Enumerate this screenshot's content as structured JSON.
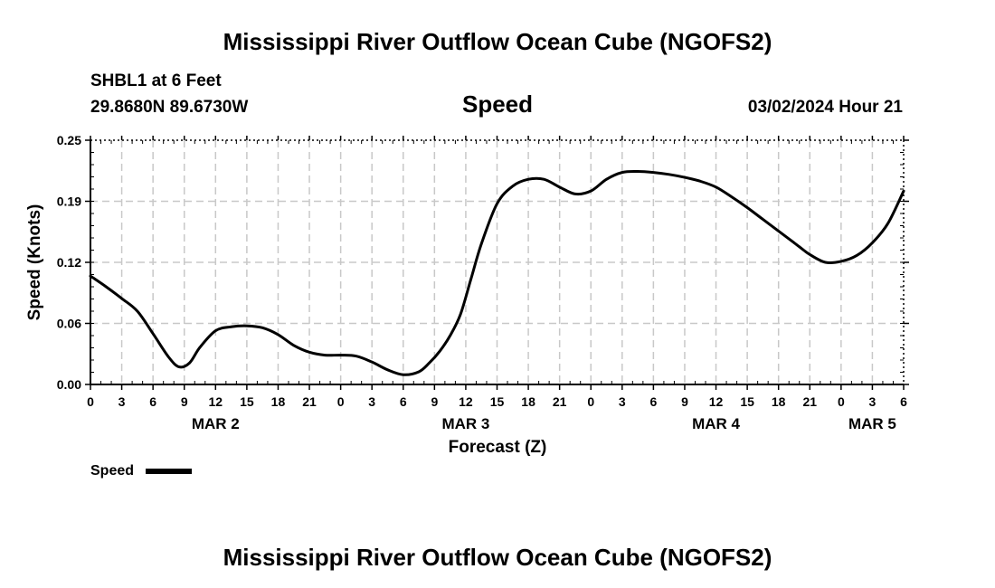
{
  "header": {
    "title": "Mississippi River Outflow Ocean Cube (NGOFS2)",
    "station": "SHBL1 at 6 Feet",
    "coords": "29.8680N  89.6730W",
    "panel_title": "Speed",
    "datetime": "03/02/2024 Hour 21"
  },
  "footer": {
    "title": "Mississippi River Outflow Ocean Cube (NGOFS2)"
  },
  "legend": {
    "label": "Speed",
    "color": "#000000"
  },
  "chart_data": {
    "type": "line",
    "title": "Speed",
    "xlabel": "Forecast (Z)",
    "ylabel": "Speed (Knots)",
    "x_unit": "hours since MAR 2 00Z",
    "xlim": [
      0,
      78
    ],
    "ylim": [
      0.0,
      0.25
    ],
    "y_ticks": [
      "0.00",
      "0.06",
      "0.12",
      "0.19",
      "0.25"
    ],
    "y_tick_values": [
      0.0,
      0.0625,
      0.125,
      0.1875,
      0.25
    ],
    "x_tick_labels": [
      "0",
      "3",
      "6",
      "9",
      "12",
      "15",
      "18",
      "21",
      "0",
      "3",
      "6",
      "9",
      "12",
      "15",
      "18",
      "21",
      "0",
      "3",
      "6",
      "9",
      "12",
      "15",
      "18",
      "21",
      "0",
      "3",
      "6"
    ],
    "day_labels": [
      {
        "label": "MAR 2",
        "hour": 12
      },
      {
        "label": "MAR 3",
        "hour": 36
      },
      {
        "label": "MAR 4",
        "hour": 60
      },
      {
        "label": "MAR 5",
        "hour": 75
      }
    ],
    "grid": true,
    "legend_position": "bottom-left",
    "series": [
      {
        "name": "Speed",
        "color": "#000000",
        "x": [
          0,
          1.5,
          3,
          4.5,
          6,
          7.5,
          8.5,
          9.5,
          10.5,
          12,
          13.5,
          15,
          16.5,
          18,
          19.5,
          21,
          22.5,
          24,
          25.5,
          27,
          28.5,
          30,
          31.5,
          32.5,
          33.5,
          34.5,
          35.5,
          36.5,
          37.5,
          39,
          40.5,
          42,
          43.5,
          45,
          46.5,
          48,
          49.5,
          51,
          52.5,
          54,
          55.5,
          57,
          58.5,
          60,
          61.5,
          63,
          64.5,
          66,
          67.5,
          69,
          70.5,
          72,
          73.5,
          75,
          76.5,
          78
        ],
        "y": [
          0.111,
          0.1,
          0.088,
          0.075,
          0.052,
          0.028,
          0.018,
          0.022,
          0.038,
          0.055,
          0.059,
          0.06,
          0.058,
          0.051,
          0.04,
          0.033,
          0.03,
          0.03,
          0.029,
          0.023,
          0.015,
          0.01,
          0.013,
          0.022,
          0.034,
          0.05,
          0.072,
          0.108,
          0.144,
          0.185,
          0.203,
          0.21,
          0.21,
          0.202,
          0.195,
          0.198,
          0.21,
          0.217,
          0.218,
          0.217,
          0.215,
          0.212,
          0.208,
          0.202,
          0.192,
          0.181,
          0.169,
          0.157,
          0.145,
          0.133,
          0.125,
          0.126,
          0.132,
          0.145,
          0.165,
          0.198
        ]
      }
    ]
  }
}
